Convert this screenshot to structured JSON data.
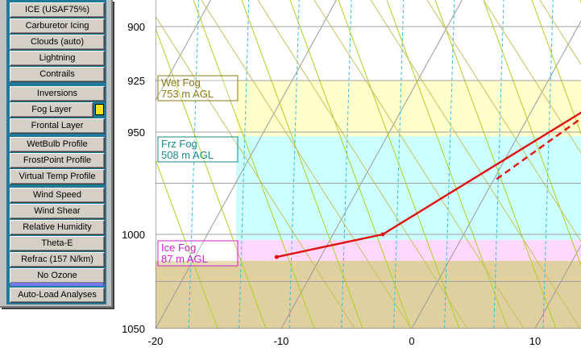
{
  "sidebar": {
    "buttons": [
      {
        "label": "ICE  (USAF75%)"
      },
      {
        "label": "Carburetor Icing"
      },
      {
        "label": "Clouds (auto)"
      },
      {
        "label": "Lightning"
      },
      {
        "label": "Contrails"
      },
      {
        "label": "Inversions"
      },
      {
        "label": "Fog Layer"
      },
      {
        "label": "Frontal Layer"
      },
      {
        "label": "WetBulb Profile"
      },
      {
        "label": "FrostPoint Profile"
      },
      {
        "label": "Virtual Temp Profile"
      },
      {
        "label": "Wind Speed"
      },
      {
        "label": "Wind Shear"
      },
      {
        "label": "Relative Humidity"
      },
      {
        "label": "Theta-E"
      },
      {
        "label": "Refrac (157 N/km)"
      },
      {
        "label": "No Ozone"
      },
      {
        "label": "Auto-Load Analyses"
      }
    ],
    "fog_swatch_color": "#f0e020"
  },
  "chart_data": {
    "type": "line",
    "x_ticks": [
      "-20",
      "-10",
      "0",
      "10"
    ],
    "y_ticks": [
      "900",
      "925",
      "950",
      "1000",
      "1050"
    ],
    "ylim": [
      1050,
      880
    ],
    "xlim": [
      -20,
      13.5
    ],
    "log_pressure": true,
    "layers": [
      {
        "name": "Wet Fog",
        "height": "753 m AGL",
        "top_p": 925,
        "bottom_p": 952,
        "fill": "#ffffcc",
        "color": "#8b7a1a"
      },
      {
        "name": "Frz Fog",
        "height": "508 m AGL",
        "top_p": 952,
        "bottom_p": 1003,
        "fill": "#ccffff",
        "color": "#1a8a8a"
      },
      {
        "name": "Ice Fog",
        "height": "87 m AGL",
        "top_p": 1003,
        "bottom_p": 1014,
        "fill": "#ffd8ff",
        "color": "#cc22cc"
      }
    ],
    "ground_below_p": 1014,
    "ground_color": "#e0d0a0",
    "temperature": {
      "name": "Temperature",
      "color": "#e01010",
      "points": [
        [
          -13.5,
          1012
        ],
        [
          -6.2,
          1000
        ],
        [
          6.9,
          925
        ],
        [
          8.2,
          880
        ]
      ]
    },
    "dewpoint": {
      "name": "Dewpoint",
      "color": "#e01010",
      "points": [
        [
          0.2,
          973
        ],
        [
          6.8,
          926
        ],
        [
          5.2,
          880
        ]
      ]
    }
  }
}
